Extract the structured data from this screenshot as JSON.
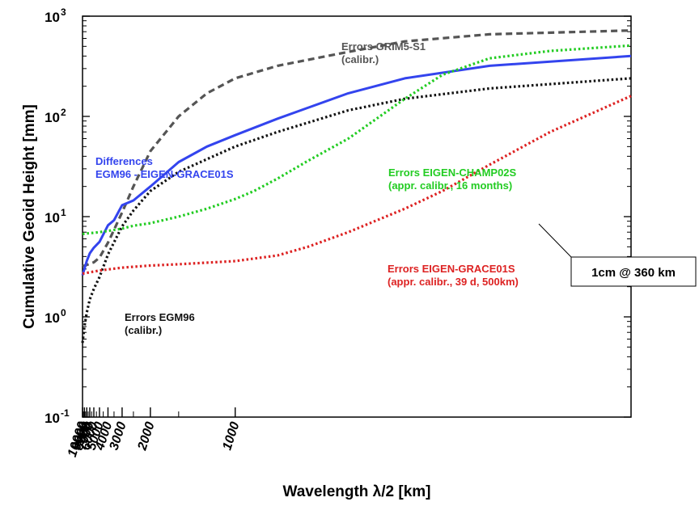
{
  "chart_data": {
    "type": "line",
    "xlabel": "Wavelength λ/2 [km]",
    "ylabel": "Cumulative Geoid Height [mm]",
    "x_scale": "reciprocal",
    "y_scale": "log",
    "xlim": [
      10000,
      300
    ],
    "ylim": [
      0.1,
      1000
    ],
    "grid": false,
    "x_ticks_labeled": [
      "10000",
      "9000",
      "8000",
      "7000",
      "6000",
      "5000",
      "4000",
      "3000",
      "2000",
      "1000"
    ],
    "x_ticks_minor": [
      9500,
      8500,
      7500,
      6500,
      5500,
      4500,
      3500,
      2500,
      1500
    ],
    "y_ticks": [
      {
        "value": 0.1,
        "base": "10",
        "exp": "-1"
      },
      {
        "value": 1,
        "base": "10",
        "exp": "0"
      },
      {
        "value": 10,
        "base": "10",
        "exp": "1"
      },
      {
        "value": 100,
        "base": "10",
        "exp": "2"
      },
      {
        "value": 1000,
        "base": "10",
        "exp": "3"
      }
    ],
    "series": [
      {
        "label_lines": [
          "Errors GRIM5-S1",
          "(calibr.)"
        ],
        "color": "#555555",
        "style": "dashed",
        "x": [
          10000,
          8000,
          6000,
          5000,
          4000,
          3000,
          2500,
          2000,
          1500,
          1200,
          1000,
          800,
          600,
          500,
          400,
          300
        ],
        "y": [
          3.2,
          3.3,
          3.5,
          3.9,
          5.5,
          11,
          20,
          45,
          100,
          170,
          240,
          320,
          440,
          560,
          660,
          720
        ]
      },
      {
        "label_lines": [
          "Differences",
          "EGM96 - EIGEN-GRACE01S"
        ],
        "color": "#3344ee",
        "style": "solid",
        "x": [
          10000,
          9000,
          8000,
          7000,
          6000,
          5000,
          4000,
          3500,
          3000,
          2500,
          2000,
          1500,
          1200,
          1000,
          800,
          600,
          500,
          400,
          300
        ],
        "y": [
          2.6,
          3.0,
          3.6,
          4.3,
          4.9,
          5.6,
          8.2,
          9.2,
          13,
          14.5,
          20,
          35,
          50,
          65,
          95,
          170,
          240,
          320,
          400
        ]
      },
      {
        "label_lines": [
          "Errors EGM96",
          "(calibr.)"
        ],
        "color": "#111111",
        "style": "dotted",
        "x": [
          10000,
          9000,
          8000,
          7000,
          6000,
          5000,
          4000,
          3000,
          2500,
          2000,
          1500,
          1000,
          800,
          600,
          500,
          400,
          300
        ],
        "y": [
          0.55,
          0.8,
          1.1,
          1.5,
          1.9,
          2.5,
          4.2,
          8,
          11.5,
          18,
          28,
          50,
          70,
          115,
          150,
          190,
          240
        ]
      },
      {
        "label_lines": [
          "Errors EIGEN-CHAMP02S",
          "(appr. calibr., 16 months)"
        ],
        "color": "#22cc22",
        "style": "dotted",
        "x": [
          10000,
          8000,
          6000,
          5000,
          4000,
          3000,
          2500,
          2000,
          1500,
          1200,
          1000,
          900,
          800,
          700,
          600,
          500,
          450,
          400,
          350,
          300
        ],
        "y": [
          6.7,
          6.8,
          6.9,
          7.0,
          7.2,
          7.6,
          8.1,
          8.6,
          10,
          12,
          15,
          18,
          24,
          36,
          60,
          150,
          260,
          380,
          450,
          510
        ]
      },
      {
        "label_lines": [
          "Errors EIGEN-GRACE01S",
          "(appr. calibr., 39 d, 500km)"
        ],
        "color": "#dd2222",
        "style": "dotted",
        "x": [
          10000,
          5000,
          3000,
          2000,
          1500,
          1000,
          800,
          700,
          600,
          500,
          450,
          400,
          350,
          300
        ],
        "y": [
          2.7,
          2.9,
          3.1,
          3.25,
          3.35,
          3.6,
          4.1,
          5.0,
          7.0,
          12,
          18,
          33,
          70,
          160
        ]
      }
    ],
    "annotation": "1cm @ 360 km"
  }
}
